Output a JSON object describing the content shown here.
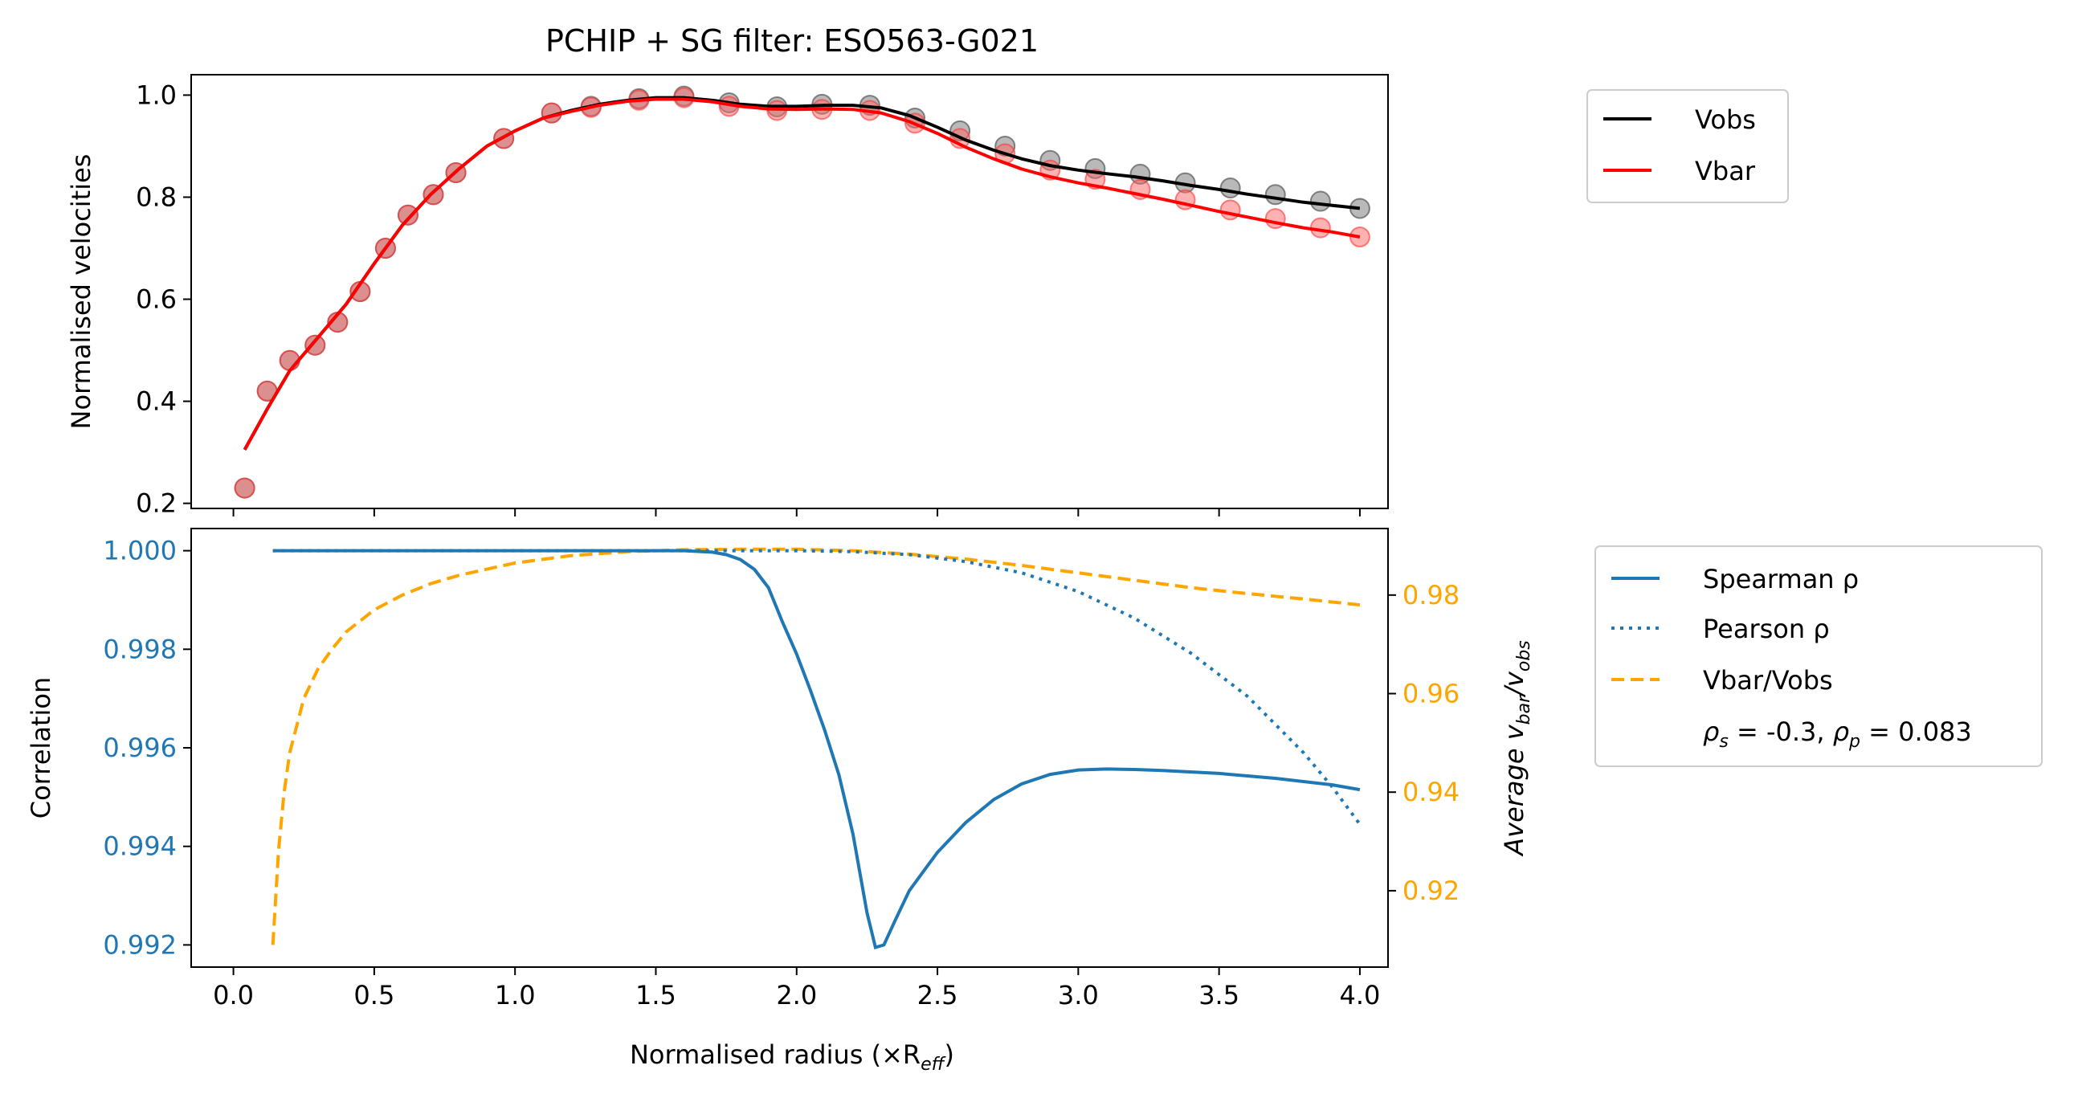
{
  "figure": {
    "title": "PCHIP + SG filter: ESO563-G021"
  },
  "colors": {
    "vobs": "#000000",
    "vbar": "#ff0000",
    "spearman": "#1f77b4",
    "pearson": "#1f77b4",
    "ratio": "#ffa500",
    "obs_marker": "#808080",
    "bar_marker": "#ff6666"
  },
  "chart_data": [
    {
      "type": "line",
      "title": "PCHIP + SG filter: ESO563-G021",
      "xlabel": "",
      "ylabel": "Normalised velocities",
      "xlim": [
        -0.15,
        4.1
      ],
      "ylim": [
        0.19,
        1.04
      ],
      "yticks": [
        0.2,
        0.4,
        0.6,
        0.8,
        1.0
      ],
      "ytick_labels": [
        "0.2",
        "0.4",
        "0.6",
        "0.8",
        "1.0"
      ],
      "legend": {
        "placement": "outside-right-top",
        "entries": [
          "Vobs",
          "Vbar"
        ]
      },
      "points": {
        "r": [
          0.04,
          0.12,
          0.2,
          0.29,
          0.37,
          0.45,
          0.54,
          0.62,
          0.71,
          0.79,
          0.96,
          1.13,
          1.27,
          1.44,
          1.6,
          1.76,
          1.93,
          2.09,
          2.26,
          2.42,
          2.58,
          2.74,
          2.9,
          3.06,
          3.22,
          3.38,
          3.54,
          3.7,
          3.86,
          4.0
        ],
        "vobs": [
          0.23,
          0.42,
          0.48,
          0.51,
          0.555,
          0.615,
          0.7,
          0.765,
          0.805,
          0.848,
          0.915,
          0.965,
          0.978,
          0.993,
          0.998,
          0.985,
          0.977,
          0.982,
          0.98,
          0.955,
          0.93,
          0.9,
          0.872,
          0.856,
          0.845,
          0.828,
          0.818,
          0.805,
          0.792,
          0.778
        ],
        "vbar": [
          0.23,
          0.42,
          0.48,
          0.51,
          0.555,
          0.615,
          0.7,
          0.765,
          0.805,
          0.848,
          0.915,
          0.965,
          0.976,
          0.99,
          0.995,
          0.978,
          0.97,
          0.972,
          0.97,
          0.945,
          0.915,
          0.885,
          0.853,
          0.835,
          0.815,
          0.795,
          0.775,
          0.758,
          0.74,
          0.722
        ]
      },
      "series": [
        {
          "name": "Vobs",
          "x": [
            0.04,
            0.12,
            0.2,
            0.3,
            0.4,
            0.5,
            0.6,
            0.7,
            0.8,
            0.9,
            1.0,
            1.1,
            1.2,
            1.3,
            1.4,
            1.5,
            1.6,
            1.7,
            1.8,
            1.9,
            2.0,
            2.1,
            2.2,
            2.3,
            2.4,
            2.5,
            2.6,
            2.7,
            2.8,
            2.9,
            3.0,
            3.1,
            3.2,
            3.3,
            3.4,
            3.5,
            3.6,
            3.7,
            3.8,
            3.9,
            4.0
          ],
          "y": [
            0.305,
            0.385,
            0.46,
            0.525,
            0.59,
            0.67,
            0.745,
            0.805,
            0.855,
            0.9,
            0.93,
            0.955,
            0.97,
            0.982,
            0.99,
            0.995,
            0.995,
            0.99,
            0.982,
            0.978,
            0.978,
            0.98,
            0.98,
            0.975,
            0.96,
            0.937,
            0.912,
            0.892,
            0.875,
            0.862,
            0.853,
            0.846,
            0.84,
            0.832,
            0.823,
            0.815,
            0.806,
            0.798,
            0.79,
            0.784,
            0.778
          ]
        },
        {
          "name": "Vbar",
          "x": [
            0.04,
            0.12,
            0.2,
            0.3,
            0.4,
            0.5,
            0.6,
            0.7,
            0.8,
            0.9,
            1.0,
            1.1,
            1.2,
            1.3,
            1.4,
            1.5,
            1.6,
            1.7,
            1.8,
            1.9,
            2.0,
            2.1,
            2.2,
            2.3,
            2.4,
            2.5,
            2.6,
            2.7,
            2.8,
            2.9,
            3.0,
            3.1,
            3.2,
            3.3,
            3.4,
            3.5,
            3.6,
            3.7,
            3.8,
            3.9,
            4.0
          ],
          "y": [
            0.305,
            0.385,
            0.46,
            0.525,
            0.59,
            0.67,
            0.745,
            0.805,
            0.855,
            0.9,
            0.93,
            0.955,
            0.968,
            0.98,
            0.988,
            0.992,
            0.992,
            0.987,
            0.978,
            0.973,
            0.972,
            0.973,
            0.972,
            0.965,
            0.948,
            0.925,
            0.898,
            0.875,
            0.855,
            0.84,
            0.828,
            0.818,
            0.807,
            0.796,
            0.784,
            0.772,
            0.761,
            0.75,
            0.74,
            0.732,
            0.722
          ]
        }
      ]
    },
    {
      "type": "line",
      "title": "",
      "xlabel": "Normalised radius (×R",
      "xlabel_sub": "eff",
      "xlabel_tail": ")",
      "ylabel": "Correlation",
      "y2label_parts": [
        "Average v",
        "bar",
        "/v",
        "obs"
      ],
      "xlim": [
        -0.15,
        4.1
      ],
      "ylim": [
        0.99155,
        1.00045
      ],
      "y2lim": [
        0.9045,
        0.9935
      ],
      "xticks": [
        0.0,
        0.5,
        1.0,
        1.5,
        2.0,
        2.5,
        3.0,
        3.5,
        4.0
      ],
      "xtick_labels": [
        "0.0",
        "0.5",
        "1.0",
        "1.5",
        "2.0",
        "2.5",
        "3.0",
        "3.5",
        "4.0"
      ],
      "yticks": [
        0.992,
        0.994,
        0.996,
        0.998,
        1.0
      ],
      "ytick_labels": [
        "0.992",
        "0.994",
        "0.996",
        "0.998",
        "1.000"
      ],
      "y2ticks": [
        0.92,
        0.94,
        0.96,
        0.98
      ],
      "y2tick_labels": [
        "0.92",
        "0.94",
        "0.96",
        "0.98"
      ],
      "legend": {
        "placement": "outside-right-top",
        "entries": [
          "Spearman ρ",
          "Pearson ρ",
          "Vbar/Vobs"
        ],
        "note_parts": [
          "ρ",
          "s",
          " = -0.3, ",
          "ρ",
          "p",
          " = 0.083"
        ]
      },
      "series": [
        {
          "name": "Spearman ρ",
          "axis": "left",
          "x": [
            0.14,
            0.5,
            1.0,
            1.5,
            1.6,
            1.7,
            1.75,
            1.8,
            1.85,
            1.9,
            1.95,
            2.0,
            2.05,
            2.1,
            2.15,
            2.2,
            2.25,
            2.28,
            2.31,
            2.35,
            2.4,
            2.5,
            2.6,
            2.7,
            2.8,
            2.9,
            3.0,
            3.1,
            3.2,
            3.3,
            3.5,
            3.7,
            3.9,
            4.0
          ],
          "y": [
            1.0,
            1.0,
            1.0,
            1.0,
            1.0,
            0.99997,
            0.99992,
            0.99982,
            0.99962,
            0.99925,
            0.99855,
            0.9979,
            0.99715,
            0.99635,
            0.99545,
            0.99425,
            0.99265,
            0.99195,
            0.992,
            0.9925,
            0.9931,
            0.99388,
            0.99448,
            0.99495,
            0.99527,
            0.99546,
            0.99555,
            0.99557,
            0.99556,
            0.99554,
            0.99548,
            0.99538,
            0.99525,
            0.99515
          ]
        },
        {
          "name": "Pearson ρ",
          "axis": "left",
          "x": [
            0.14,
            0.5,
            1.0,
            1.5,
            2.0,
            2.2,
            2.4,
            2.6,
            2.8,
            3.0,
            3.2,
            3.4,
            3.6,
            3.8,
            3.9,
            4.0
          ],
          "y": [
            1.0,
            1.0,
            1.0,
            1.0,
            1.0,
            0.99998,
            0.99992,
            0.99978,
            0.99955,
            0.99917,
            0.99863,
            0.99792,
            0.99705,
            0.9959,
            0.99522,
            0.99445
          ]
        },
        {
          "name": "Vbar/Vobs",
          "axis": "right",
          "x": [
            0.14,
            0.16,
            0.18,
            0.2,
            0.25,
            0.3,
            0.35,
            0.4,
            0.5,
            0.6,
            0.7,
            0.8,
            1.0,
            1.2,
            1.4,
            1.6,
            1.8,
            2.0,
            2.2,
            2.4,
            2.6,
            2.8,
            3.0,
            3.2,
            3.4,
            3.6,
            3.8,
            4.0
          ],
          "y": [
            0.909,
            0.928,
            0.94,
            0.948,
            0.959,
            0.965,
            0.969,
            0.9725,
            0.977,
            0.98,
            0.9823,
            0.984,
            0.9865,
            0.988,
            0.9888,
            0.9892,
            0.9893,
            0.9893,
            0.989,
            0.9883,
            0.9873,
            0.986,
            0.9845,
            0.983,
            0.9815,
            0.9803,
            0.9792,
            0.978
          ]
        }
      ]
    }
  ]
}
